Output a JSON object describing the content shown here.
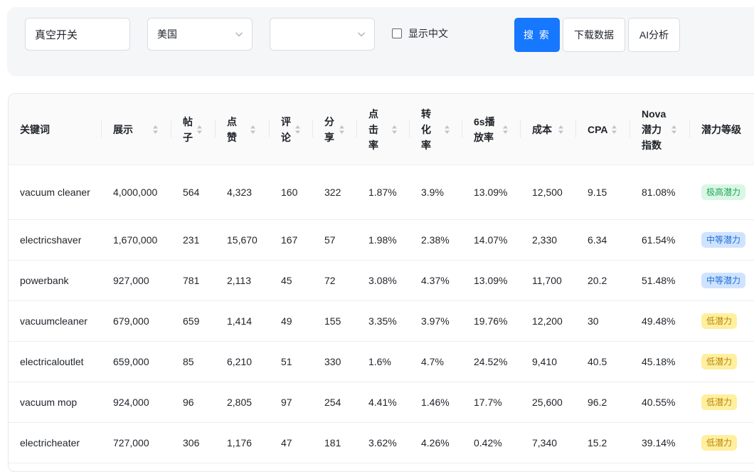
{
  "filters": {
    "keyword": "真空开关",
    "country": "美国",
    "second_select": "",
    "show_chinese_label": "显示中文",
    "show_chinese_checked": false,
    "search_label": "搜 索",
    "download_label": "下载数据",
    "ai_label": "AI分析"
  },
  "table": {
    "headers": {
      "keyword": "关键词",
      "impressions": "展示",
      "posts": "帖子",
      "likes": "点赞",
      "comments": "评论",
      "shares": "分享",
      "ctr": "点击率",
      "cvr": "转化率",
      "play6s": "6s播放率",
      "cost": "成本",
      "cpa": "CPA",
      "nova": "Nova潜力指数",
      "level": "潜力等级"
    },
    "rows": [
      {
        "keyword": "vacuum cleaner",
        "impressions": "4,000,000",
        "posts": "564",
        "likes": "4,323",
        "comments": "160",
        "shares": "322",
        "ctr": "1.87%",
        "cvr": "3.9%",
        "play6s": "13.09%",
        "cost": "12,500",
        "cpa": "9.15",
        "nova": "81.08%",
        "level": "极高潜力",
        "level_type": "high"
      },
      {
        "keyword": "electricshaver",
        "impressions": "1,670,000",
        "posts": "231",
        "likes": "15,670",
        "comments": "167",
        "shares": "57",
        "ctr": "1.98%",
        "cvr": "2.38%",
        "play6s": "14.07%",
        "cost": "2,330",
        "cpa": "6.34",
        "nova": "61.54%",
        "level": "中等潜力",
        "level_type": "mid"
      },
      {
        "keyword": "powerbank",
        "impressions": "927,000",
        "posts": "781",
        "likes": "2,113",
        "comments": "45",
        "shares": "72",
        "ctr": "3.08%",
        "cvr": "4.37%",
        "play6s": "13.09%",
        "cost": "11,700",
        "cpa": "20.2",
        "nova": "51.48%",
        "level": "中等潜力",
        "level_type": "mid"
      },
      {
        "keyword": "vacuumcleaner",
        "impressions": "679,000",
        "posts": "659",
        "likes": "1,414",
        "comments": "49",
        "shares": "155",
        "ctr": "3.35%",
        "cvr": "3.97%",
        "play6s": "19.76%",
        "cost": "12,200",
        "cpa": "30",
        "nova": "49.48%",
        "level": "低潜力",
        "level_type": "low"
      },
      {
        "keyword": "electricaloutlet",
        "impressions": "659,000",
        "posts": "85",
        "likes": "6,210",
        "comments": "51",
        "shares": "330",
        "ctr": "1.6%",
        "cvr": "4.7%",
        "play6s": "24.52%",
        "cost": "9,410",
        "cpa": "40.5",
        "nova": "45.18%",
        "level": "低潜力",
        "level_type": "low"
      },
      {
        "keyword": "vacuum mop",
        "impressions": "924,000",
        "posts": "96",
        "likes": "2,805",
        "comments": "97",
        "shares": "254",
        "ctr": "4.41%",
        "cvr": "1.46%",
        "play6s": "17.7%",
        "cost": "25,600",
        "cpa": "96.2",
        "nova": "40.55%",
        "level": "低潜力",
        "level_type": "low"
      },
      {
        "keyword": "electricheater",
        "impressions": "727,000",
        "posts": "306",
        "likes": "1,176",
        "comments": "47",
        "shares": "181",
        "ctr": "3.62%",
        "cvr": "4.26%",
        "play6s": "0.42%",
        "cost": "7,340",
        "cpa": "15.2",
        "nova": "39.14%",
        "level": "低潜力",
        "level_type": "low"
      }
    ]
  },
  "colors": {
    "primary": "#1677ff",
    "badge_high_bg": "#d9f7e4",
    "badge_high_fg": "#21a35a",
    "badge_mid_bg": "#cfe3ff",
    "badge_mid_fg": "#1f6fd1",
    "badge_low_bg": "#ffef9e",
    "badge_low_fg": "#b8860b"
  },
  "icons": {
    "select_arrow": "chevron-down-icon",
    "sort": "sort-icon"
  }
}
